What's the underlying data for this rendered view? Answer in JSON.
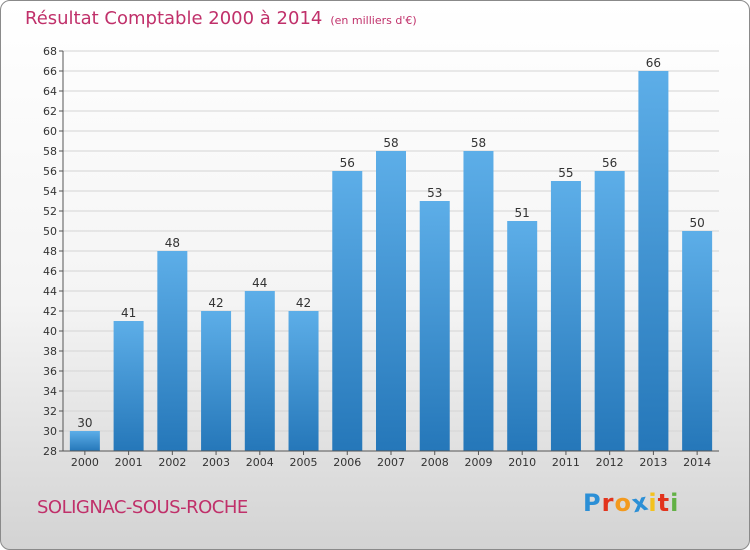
{
  "header": {
    "title": "Résultat Comptable 2000 à 2014",
    "unit": "(en milliers d'€)"
  },
  "footer": {
    "place": "SOLIGNAC-SOUS-ROCHE",
    "logo": "Proxiti"
  },
  "colors": {
    "bar_top": "#5daee8",
    "bar_bottom": "#2577b9",
    "accent": "#c0306a"
  },
  "chart_data": {
    "type": "bar",
    "title": "Résultat Comptable 2000 à 2014",
    "subtitle": "(en milliers d'€)",
    "xlabel": "",
    "ylabel": "",
    "categories": [
      "2000",
      "2001",
      "2002",
      "2003",
      "2004",
      "2005",
      "2006",
      "2007",
      "2008",
      "2009",
      "2010",
      "2011",
      "2012",
      "2013",
      "2014"
    ],
    "values": [
      30,
      41,
      48,
      42,
      44,
      42,
      56,
      58,
      53,
      58,
      51,
      55,
      56,
      66,
      50
    ],
    "ylim": [
      28,
      68
    ],
    "ytick_step": 2,
    "grid": true,
    "legend": "none"
  }
}
